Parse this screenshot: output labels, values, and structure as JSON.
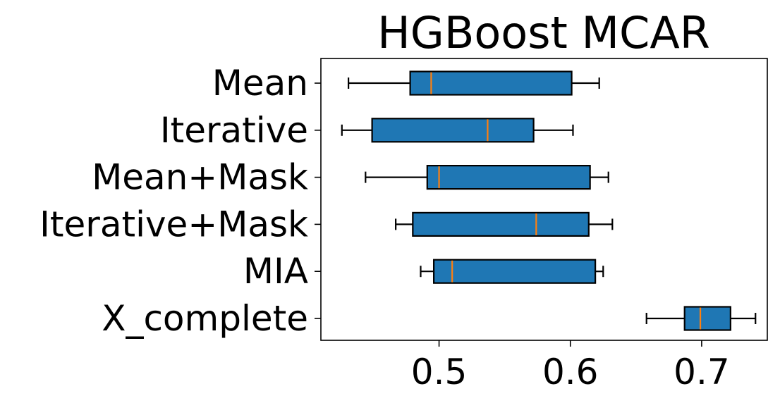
{
  "chart_data": {
    "type": "boxplot",
    "title": "HGBoost MCAR",
    "orientation": "horizontal",
    "xlabel": "",
    "ylabel": "",
    "xlim": [
      0.41,
      0.75
    ],
    "xticks": [
      0.5,
      0.6,
      0.7
    ],
    "xtick_labels": [
      "0.5",
      "0.6",
      "0.7"
    ],
    "grid": false,
    "categories": [
      "Mean",
      "Iterative",
      "Mean+Mask",
      "Iterative+Mask",
      "MIA",
      "X_complete"
    ],
    "boxes": [
      {
        "label": "Mean",
        "whislo": 0.431,
        "q1": 0.478,
        "med": 0.494,
        "q3": 0.601,
        "whishi": 0.622
      },
      {
        "label": "Iterative",
        "whislo": 0.426,
        "q1": 0.449,
        "med": 0.537,
        "q3": 0.572,
        "whishi": 0.602
      },
      {
        "label": "Mean+Mask",
        "whislo": 0.444,
        "q1": 0.491,
        "med": 0.5,
        "q3": 0.615,
        "whishi": 0.629
      },
      {
        "label": "Iterative+Mask",
        "whislo": 0.467,
        "q1": 0.48,
        "med": 0.574,
        "q3": 0.614,
        "whishi": 0.632
      },
      {
        "label": "MIA",
        "whislo": 0.486,
        "q1": 0.496,
        "med": 0.51,
        "q3": 0.619,
        "whishi": 0.625
      },
      {
        "label": "X_complete",
        "whislo": 0.658,
        "q1": 0.687,
        "med": 0.699,
        "q3": 0.722,
        "whishi": 0.741
      }
    ],
    "colors": {
      "box_fill": "#1f77b4",
      "median": "#ff7f0e",
      "edge": "#000000"
    }
  }
}
